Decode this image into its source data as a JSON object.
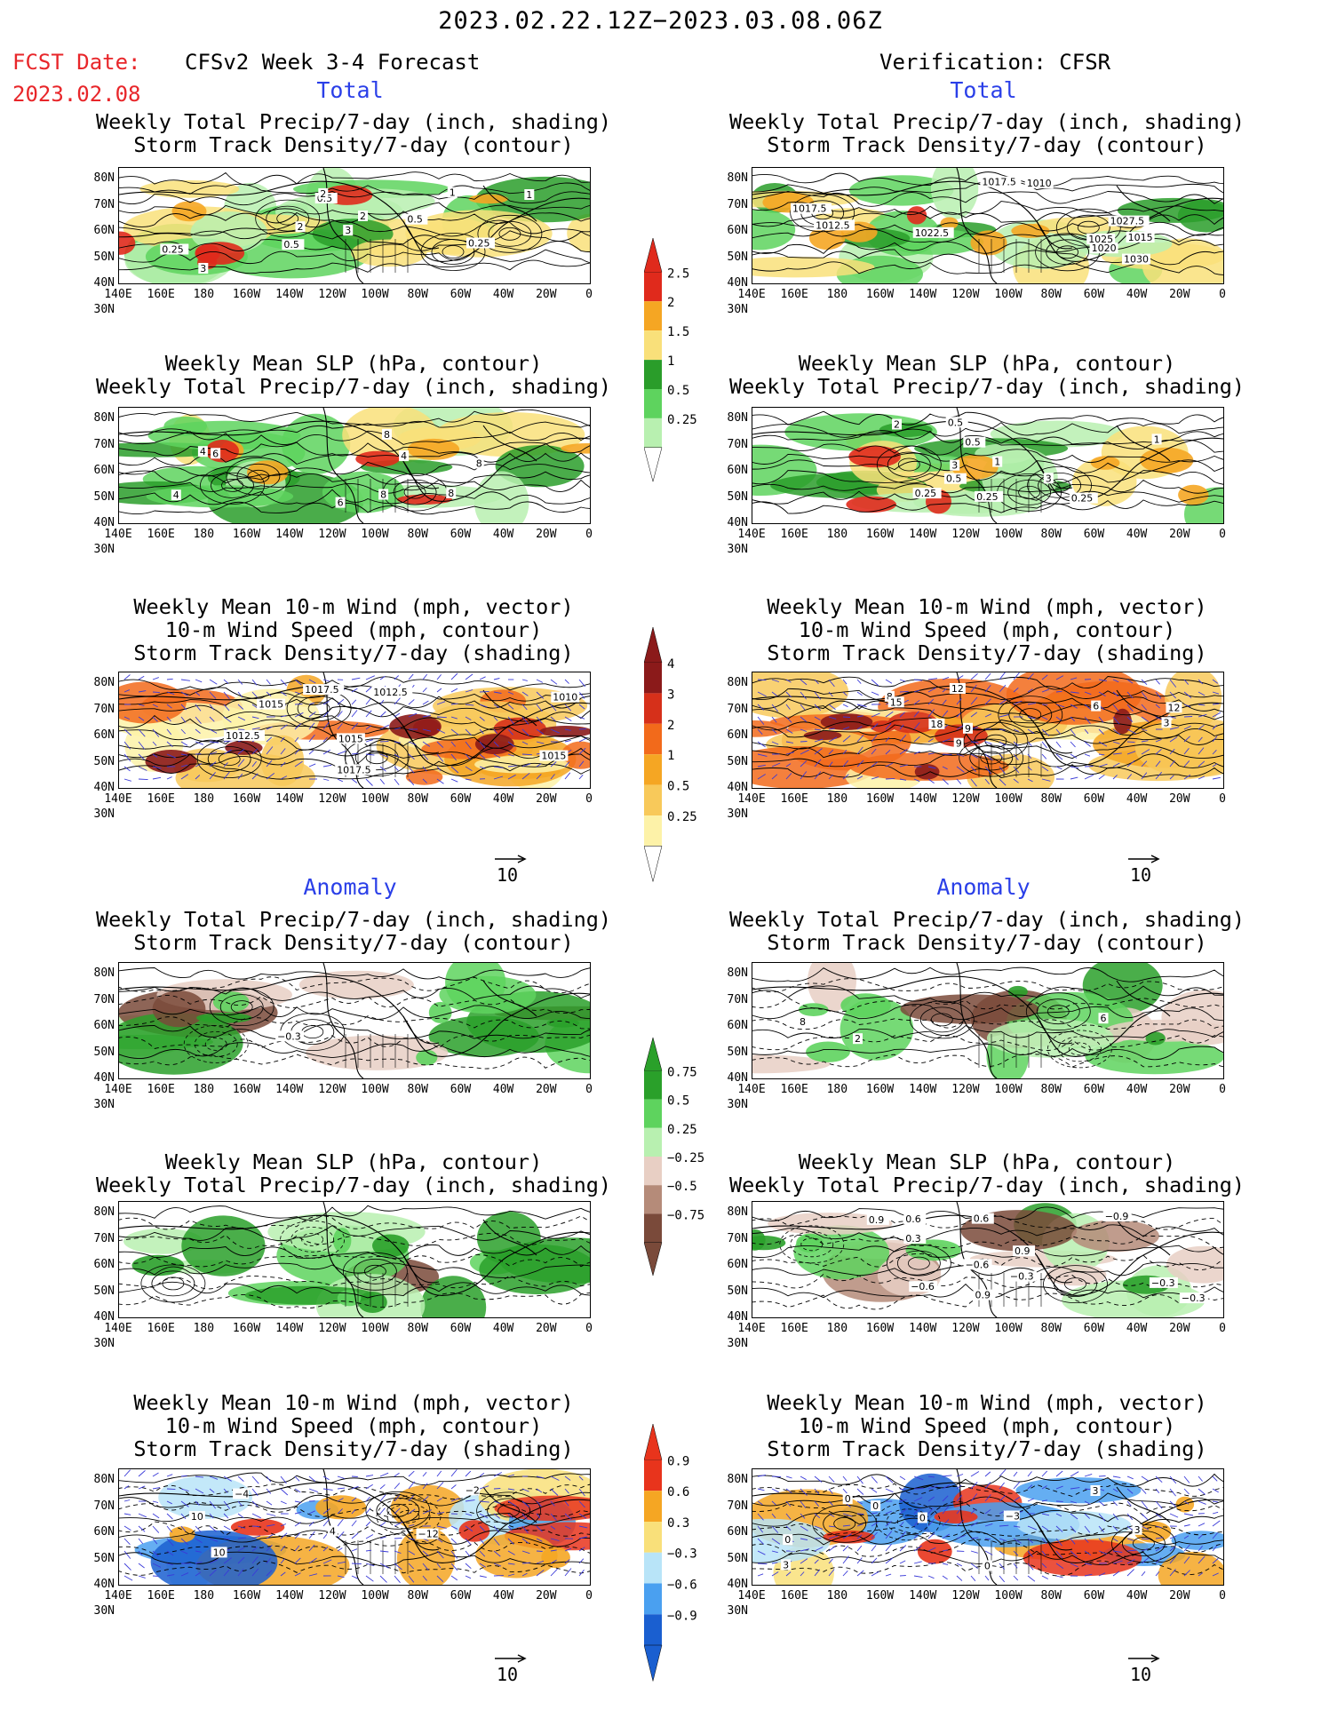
{
  "header": {
    "date_range": "2023.02.22.12Z−2023.03.08.06Z",
    "fcst_label": "FCST Date:",
    "fcst_date": "2023.02.08",
    "model_title": "CFSv2 Week 3-4 Forecast",
    "verification": "Verification: CFSR"
  },
  "sections": {
    "total": "Total",
    "anomaly": "Anomaly"
  },
  "panel_titles": {
    "precip_storm": [
      "Weekly Total Precip/7-day (inch, shading)",
      "Storm Track Density/7-day (contour)"
    ],
    "slp_precip": [
      "Weekly Mean SLP (hPa, contour)",
      "Weekly Total Precip/7-day (inch, shading)"
    ],
    "wind": [
      "Weekly Mean 10-m Wind (mph, vector)",
      "10-m Wind Speed (mph, contour)",
      "Storm Track Density/7-day (shading)"
    ]
  },
  "axes": {
    "lat_labels": [
      "80N",
      "70N",
      "60N",
      "50N",
      "40N",
      "30N"
    ],
    "lon_labels": [
      "140E",
      "160E",
      "180",
      "160W",
      "140W",
      "120W",
      "100W",
      "80W",
      "60W",
      "40W",
      "20W",
      "0"
    ]
  },
  "vector_ref": "10",
  "colorbars": {
    "precip_total": {
      "labels": [
        "2.5",
        "2",
        "1.5",
        "1",
        "0.5",
        "0.25"
      ],
      "colors": [
        "#e02a1c",
        "#f5a623",
        "#f9e07a",
        "#2a9d2a",
        "#5ed35e",
        "#b8f0b0"
      ]
    },
    "storm_total": {
      "labels": [
        "4",
        "3",
        "2",
        "1",
        "0.5",
        "0.25"
      ],
      "colors": [
        "#8b1a1a",
        "#d6301a",
        "#f26a1b",
        "#f5a623",
        "#f8c95a",
        "#fdf2a8"
      ]
    },
    "precip_anom": {
      "labels": [
        "0.75",
        "0.5",
        "0.25",
        "−0.25",
        "−0.5",
        "−0.75"
      ],
      "colors": [
        "#2aa02a",
        "#5ed35e",
        "#b8f0b0",
        "#e8cfc4",
        "#b58b79",
        "#7a4a3a"
      ]
    },
    "storm_anom": {
      "labels": [
        "0.9",
        "0.6",
        "0.3",
        "−0.3",
        "−0.6",
        "−0.9"
      ],
      "colors": [
        "#e8341c",
        "#f5a623",
        "#f9e07a",
        "#b8e4f8",
        "#4aa0f0",
        "#1a5fd0"
      ]
    }
  },
  "contour_labels": {
    "p1": [
      "0.5",
      "1",
      "2",
      "3",
      "2",
      "1",
      "0.5",
      "0.25",
      "0.25",
      "0.5",
      "2",
      "3"
    ],
    "p2": [
      "1015",
      "1025",
      "1030",
      "1027.5",
      "1012.5",
      "1010",
      "1017.5",
      "1022.5",
      "1020",
      "1017.5"
    ],
    "p3": [
      "4",
      "8",
      "6",
      "4",
      "8",
      "6",
      "8",
      "4",
      "8"
    ],
    "p4": [
      "2",
      "0.5",
      "0.25",
      "0.5",
      "1",
      "0.25",
      "3",
      "1",
      "0.25",
      "3",
      "0.5"
    ],
    "p5": [
      "1017.5",
      "1017.5",
      "1012.5",
      "1010",
      "1015",
      "1015",
      "1012.5",
      "1015"
    ],
    "p6": [
      "3",
      "8",
      "12",
      "15",
      "9",
      "6",
      "12",
      "9",
      "18"
    ],
    "p7": [
      "−0.3"
    ],
    "p8": [
      "2",
      "6",
      "8"
    ],
    "p10": [
      "−0.3",
      "0.9",
      "−0.6",
      "−0.6",
      "0.9",
      "−0.3",
      "0.3",
      "0.6",
      "−0.3",
      "0.6",
      "0.9",
      "−0.9"
    ],
    "p11": [
      "−12",
      "10",
      "−2",
      "−4",
      "10",
      "4"
    ],
    "p12": [
      "3",
      "0",
      "0",
      "3",
      "0",
      "0",
      "3",
      "0",
      "−3"
    ]
  }
}
